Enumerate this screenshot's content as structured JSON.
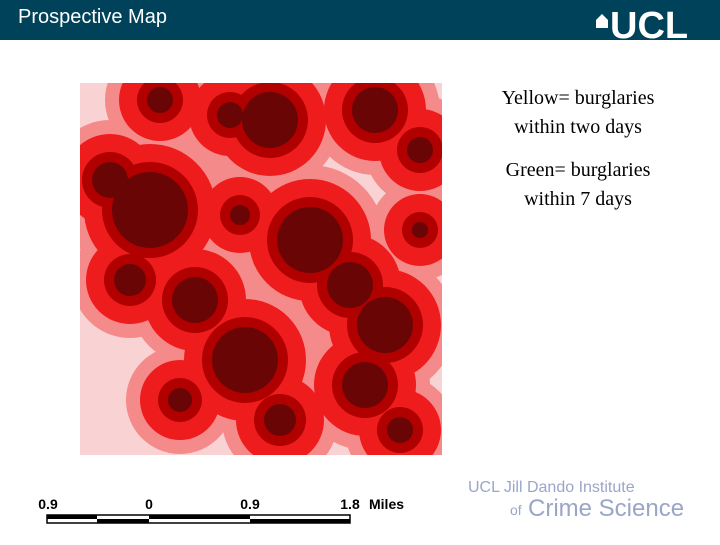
{
  "header": {
    "title": "Prospective Map",
    "logo": "UCL"
  },
  "legend": {
    "yellow": [
      "Yellow= burglaries",
      "within two days"
    ],
    "green": [
      "Green= burglaries",
      "within 7 days"
    ]
  },
  "scale_bar": {
    "labels": [
      "0.9",
      "0",
      "0.9",
      "1.8"
    ],
    "unit": "Miles"
  },
  "footer": {
    "line1": "UCL Jill Dando Institute",
    "line2_prefix": "of",
    "line2": "Crime Science"
  }
}
